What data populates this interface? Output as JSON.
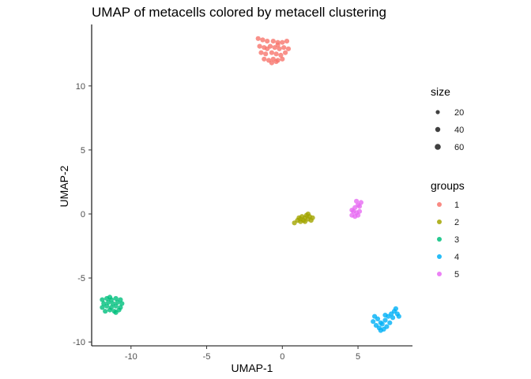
{
  "chart_data": {
    "type": "scatter",
    "title": "UMAP of metacells colored by metacell clustering",
    "xlabel": "UMAP-1",
    "ylabel": "UMAP-2",
    "xlim": [
      -12.6,
      8.6
    ],
    "ylim": [
      -10.3,
      14.8
    ],
    "xticks": [
      -10,
      -5,
      0,
      5
    ],
    "yticks": [
      -10,
      -5,
      0,
      5,
      10
    ],
    "grid": false,
    "legend_placement": "right",
    "size_legend": {
      "title": "size",
      "values": [
        20,
        40,
        60
      ]
    },
    "groups_legend": {
      "title": "groups"
    },
    "series": [
      {
        "name": "1",
        "color": "#F8766D",
        "points": [
          [
            -1.6,
            13.7
          ],
          [
            -1.3,
            13.6
          ],
          [
            -1.0,
            13.5
          ],
          [
            -0.6,
            13.5
          ],
          [
            -0.3,
            13.4
          ],
          [
            0.0,
            13.4
          ],
          [
            0.3,
            13.5
          ],
          [
            -1.5,
            13.1
          ],
          [
            -1.2,
            13.0
          ],
          [
            -0.8,
            13.1
          ],
          [
            -0.5,
            13.0
          ],
          [
            -0.2,
            12.9
          ],
          [
            0.1,
            13.0
          ],
          [
            0.4,
            12.9
          ],
          [
            -1.4,
            12.6
          ],
          [
            -1.1,
            12.5
          ],
          [
            -0.7,
            12.6
          ],
          [
            -0.4,
            12.5
          ],
          [
            -0.1,
            12.4
          ],
          [
            0.2,
            12.6
          ],
          [
            -1.2,
            12.1
          ],
          [
            -0.9,
            12.0
          ],
          [
            -0.6,
            12.1
          ],
          [
            -0.3,
            12.0
          ],
          [
            0.0,
            12.1
          ],
          [
            -0.7,
            11.8
          ],
          [
            -0.4,
            11.9
          ],
          [
            -1.0,
            12.9
          ],
          [
            -0.3,
            13.2
          ]
        ]
      },
      {
        "name": "2",
        "color": "#A3A500",
        "points": [
          [
            0.8,
            -0.7
          ],
          [
            1.0,
            -0.5
          ],
          [
            1.2,
            -0.6
          ],
          [
            1.1,
            -0.3
          ],
          [
            1.3,
            -0.2
          ],
          [
            1.4,
            -0.5
          ],
          [
            1.5,
            -0.3
          ],
          [
            1.6,
            -0.1
          ],
          [
            1.7,
            -0.4
          ],
          [
            1.8,
            -0.2
          ],
          [
            1.9,
            -0.5
          ],
          [
            2.0,
            -0.3
          ],
          [
            1.7,
            0.0
          ],
          [
            1.5,
            -0.6
          ],
          [
            1.2,
            -0.4
          ]
        ]
      },
      {
        "name": "3",
        "color": "#00BF7D",
        "points": [
          [
            -11.9,
            -6.7
          ],
          [
            -11.6,
            -6.6
          ],
          [
            -11.3,
            -6.7
          ],
          [
            -11.0,
            -6.6
          ],
          [
            -10.7,
            -6.7
          ],
          [
            -11.8,
            -7.0
          ],
          [
            -11.5,
            -6.9
          ],
          [
            -11.2,
            -7.0
          ],
          [
            -10.9,
            -6.9
          ],
          [
            -10.6,
            -7.0
          ],
          [
            -11.9,
            -7.3
          ],
          [
            -11.6,
            -7.2
          ],
          [
            -11.3,
            -7.3
          ],
          [
            -11.0,
            -7.2
          ],
          [
            -10.7,
            -7.3
          ],
          [
            -11.7,
            -7.6
          ],
          [
            -11.4,
            -7.5
          ],
          [
            -11.1,
            -7.6
          ],
          [
            -10.8,
            -7.5
          ],
          [
            -11.4,
            -6.5
          ],
          [
            -11.0,
            -7.7
          ]
        ]
      },
      {
        "name": "4",
        "color": "#00B0F6",
        "points": [
          [
            6.0,
            -8.4
          ],
          [
            6.3,
            -8.2
          ],
          [
            6.5,
            -8.5
          ],
          [
            6.8,
            -8.3
          ],
          [
            7.0,
            -8.0
          ],
          [
            7.2,
            -7.8
          ],
          [
            7.4,
            -7.6
          ],
          [
            7.6,
            -7.8
          ],
          [
            7.3,
            -8.1
          ],
          [
            7.1,
            -8.5
          ],
          [
            6.9,
            -8.8
          ],
          [
            6.7,
            -9.0
          ],
          [
            6.4,
            -8.9
          ],
          [
            6.2,
            -8.7
          ],
          [
            6.6,
            -8.6
          ],
          [
            7.5,
            -7.4
          ],
          [
            7.7,
            -8.0
          ],
          [
            6.8,
            -7.9
          ],
          [
            6.1,
            -8.0
          ],
          [
            6.5,
            -9.1
          ]
        ]
      },
      {
        "name": "5",
        "color": "#E76BF3",
        "points": [
          [
            4.6,
            -0.1
          ],
          [
            4.8,
            -0.2
          ],
          [
            5.0,
            -0.1
          ],
          [
            4.7,
            0.2
          ],
          [
            4.9,
            0.1
          ],
          [
            5.1,
            0.2
          ],
          [
            4.8,
            0.5
          ],
          [
            5.0,
            0.7
          ],
          [
            5.2,
            0.9
          ],
          [
            4.9,
            1.0
          ],
          [
            5.1,
            0.6
          ],
          [
            4.6,
            0.3
          ]
        ]
      }
    ]
  }
}
